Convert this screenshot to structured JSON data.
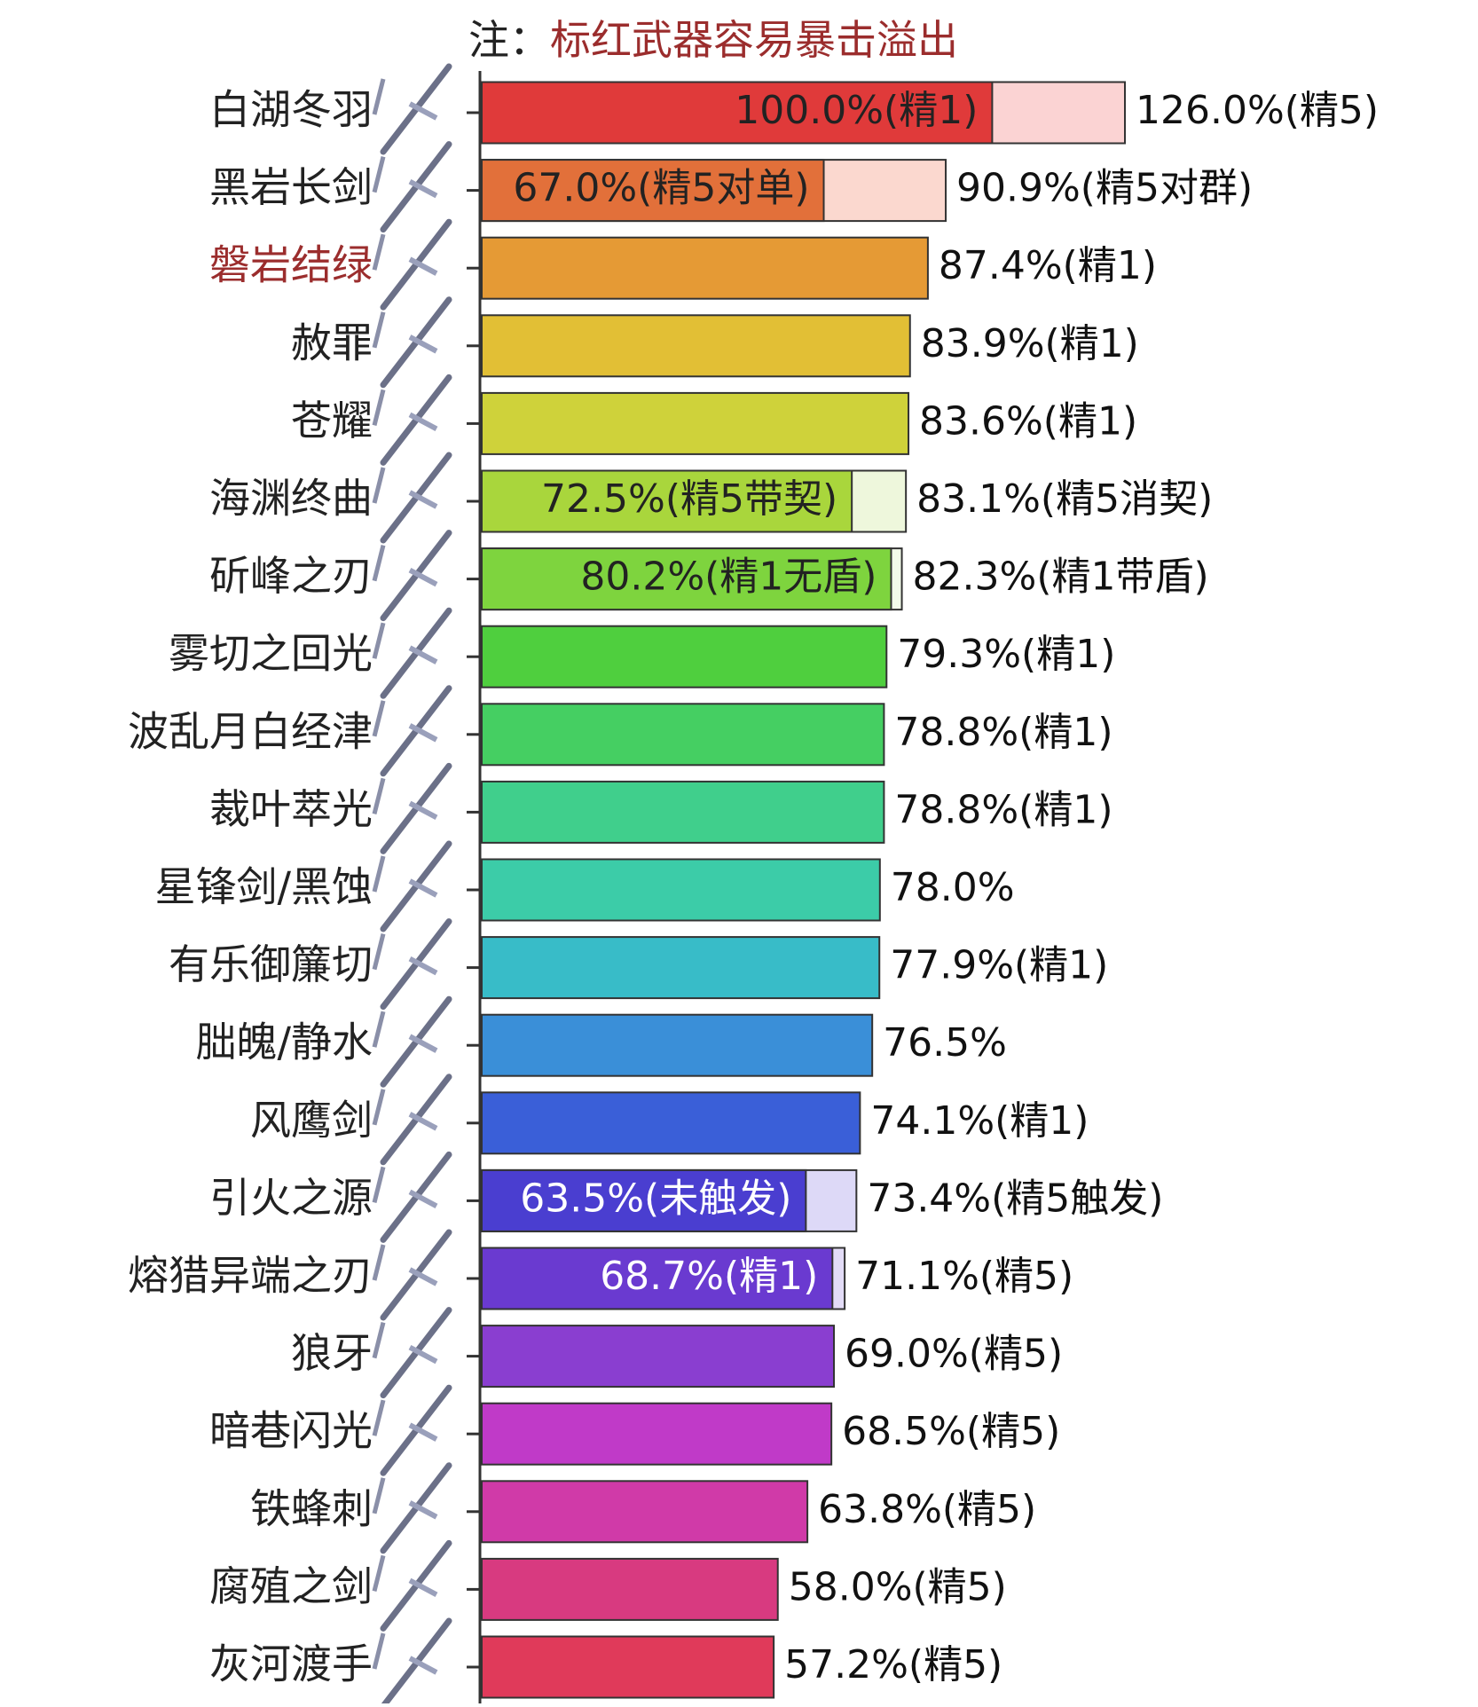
{
  "chart_data": {
    "type": "bar",
    "orientation": "horizontal",
    "note": {
      "label": "注：",
      "text": "标红武器容易暴击溢出",
      "label_color": "#222222",
      "text_color": "#9b2d2d"
    },
    "categories": [
      "白湖冬羽",
      "黑岩长剑",
      "磐岩结绿",
      "赦罪",
      "苍耀",
      "海渊终曲",
      "斫峰之刃",
      "雾切之回光",
      "波乱月白经津",
      "裁叶萃光",
      "星锋剑/黑蚀",
      "有乐御簾切",
      "朏魄/静水",
      "风鹰剑",
      "引火之源",
      "熔猎异端之刃",
      "狼牙",
      "暗巷闪光",
      "铁蜂刺",
      "腐殖之剑",
      "灰河渡手"
    ],
    "category_colors": [
      "#222222",
      "#222222",
      "#9b2d2d",
      "#222222",
      "#222222",
      "#222222",
      "#222222",
      "#222222",
      "#222222",
      "#222222",
      "#222222",
      "#222222",
      "#222222",
      "#222222",
      "#222222",
      "#222222",
      "#222222",
      "#222222",
      "#222222",
      "#222222",
      "#222222"
    ],
    "xlim": [
      0,
      180
    ],
    "series": [
      {
        "values": [
          100.0,
          67.0,
          87.4,
          83.9,
          83.6,
          72.5,
          80.2,
          79.3,
          78.8,
          78.8,
          78.0,
          77.9,
          76.5,
          74.1,
          63.5,
          68.7,
          69.0,
          68.5,
          63.8,
          58.0,
          57.2
        ],
        "value_labels": [
          "100.0%(精1)",
          "67.0%(精5对单)",
          "87.4%(精1)",
          "83.9%(精1)",
          "83.6%(精1)",
          "72.5%(精5带契)",
          "80.2%(精1无盾)",
          "79.3%(精1)",
          "78.8%(精1)",
          "78.8%(精1)",
          "78.0%",
          "77.9%(精1)",
          "76.5%",
          "74.1%(精1)",
          "63.5%(未触发)",
          "68.7%(精1)",
          "69.0%(精5)",
          "68.5%(精5)",
          "63.8%(精5)",
          "58.0%(精5)",
          "57.2%(精5)"
        ],
        "colors": [
          "#e03a3a",
          "#e2703a",
          "#e59a35",
          "#e2bf35",
          "#cfd23a",
          "#a9d63c",
          "#7ed43e",
          "#4fcf3e",
          "#45cf62",
          "#40cf8c",
          "#3ccca8",
          "#38bcc8",
          "#3a8fd8",
          "#3a5fd8",
          "#4a3ed0",
          "#6a3ad0",
          "#8a3ed0",
          "#c03ac8",
          "#d03aa8",
          "#d83a80",
          "#e03a5a"
        ],
        "inside_label_colors": [
          "#222222",
          "#222222",
          null,
          null,
          null,
          "#222222",
          "#222222",
          null,
          null,
          null,
          null,
          null,
          null,
          null,
          "#ffffff",
          "#ffffff",
          null,
          null,
          null,
          null,
          null
        ]
      },
      {
        "values": [
          126.0,
          90.9,
          null,
          null,
          null,
          83.1,
          82.3,
          null,
          null,
          null,
          null,
          null,
          null,
          null,
          73.4,
          71.1,
          null,
          null,
          null,
          null,
          null
        ],
        "value_labels": [
          "126.0%(精5)",
          "90.9%(精5对群)",
          null,
          null,
          null,
          "83.1%(精5消契)",
          "82.3%(精1带盾)",
          null,
          null,
          null,
          null,
          null,
          null,
          null,
          "73.4%(精5触发)",
          "71.1%(精5)",
          null,
          null,
          null,
          null,
          null
        ],
        "colors": [
          "#fbd3d3",
          "#fbd8cf",
          null,
          null,
          null,
          "#eef7dc",
          "#f3fbea",
          null,
          null,
          null,
          null,
          null,
          null,
          null,
          "#ddd9f7",
          "#e3dcf7",
          null,
          null,
          null,
          null,
          null
        ]
      }
    ]
  }
}
